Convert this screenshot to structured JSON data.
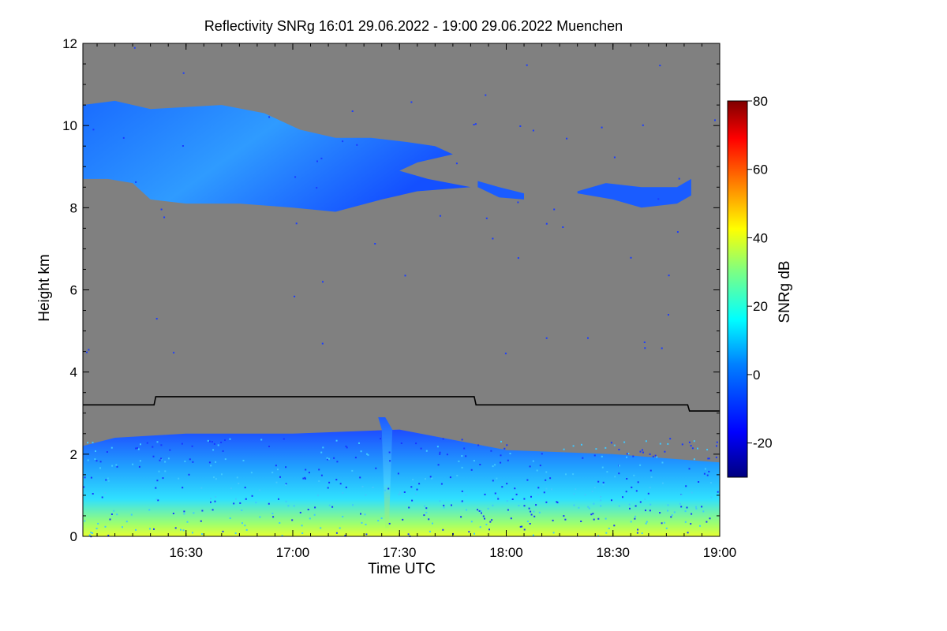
{
  "chart_data": {
    "type": "heatmap",
    "title": "Reflectivity SNRg   16:01 29.06.2022 - 19:00 29.06.2022 Muenchen",
    "xlabel": "Time UTC",
    "ylabel": "Height km",
    "xlim_minutes_after_1600": [
      1,
      180
    ],
    "ylim": [
      0,
      12
    ],
    "x_ticks": [
      {
        "label": "16:30",
        "minutes": 30
      },
      {
        "label": "17:00",
        "minutes": 60
      },
      {
        "label": "17:30",
        "minutes": 90
      },
      {
        "label": "18:00",
        "minutes": 120
      },
      {
        "label": "18:30",
        "minutes": 150
      },
      {
        "label": "19:00",
        "minutes": 180
      }
    ],
    "y_ticks": [
      {
        "label": "0",
        "value": 0
      },
      {
        "label": "2",
        "value": 2
      },
      {
        "label": "4",
        "value": 4
      },
      {
        "label": "6",
        "value": 6
      },
      {
        "label": "8",
        "value": 8
      },
      {
        "label": "10",
        "value": 10
      },
      {
        "label": "12",
        "value": 12
      }
    ],
    "colorbar": {
      "label": "SNRg dB",
      "range": [
        -30,
        80
      ],
      "ticks": [
        {
          "label": "-20",
          "value": -20
        },
        {
          "label": "0",
          "value": 0
        },
        {
          "label": "20",
          "value": 20
        },
        {
          "label": "40",
          "value": 40
        },
        {
          "label": "60",
          "value": 60
        },
        {
          "label": "80",
          "value": 80
        }
      ],
      "colors": [
        "#00007f",
        "#0000ff",
        "#0080ff",
        "#00ffff",
        "#80ff80",
        "#ffff00",
        "#ff8000",
        "#ff0000",
        "#7f0000"
      ]
    },
    "background_color": "#808080",
    "boundary_layer_line": {
      "color": "#000000",
      "points": [
        {
          "minutes": 1,
          "height_km": 3.2
        },
        {
          "minutes": 21,
          "height_km": 3.2
        },
        {
          "minutes": 21.5,
          "height_km": 3.4
        },
        {
          "minutes": 111,
          "height_km": 3.4
        },
        {
          "minutes": 111.5,
          "height_km": 3.2
        },
        {
          "minutes": 171,
          "height_km": 3.2
        },
        {
          "minutes": 171.5,
          "height_km": 3.05
        },
        {
          "minutes": 180,
          "height_km": 3.05
        }
      ]
    },
    "cloud_regions": [
      {
        "name": "cirrus-main",
        "snr_db": -8,
        "top": [
          [
            1,
            10.5
          ],
          [
            10,
            10.6
          ],
          [
            20,
            10.4
          ],
          [
            40,
            10.5
          ],
          [
            52,
            10.3
          ],
          [
            62,
            9.9
          ],
          [
            72,
            9.7
          ],
          [
            82,
            9.7
          ],
          [
            92,
            9.6
          ],
          [
            100,
            9.5
          ],
          [
            105,
            9.3
          ]
        ],
        "base": [
          [
            105,
            9.3
          ],
          [
            95,
            9.1
          ],
          [
            90,
            8.9
          ],
          [
            98,
            8.7
          ],
          [
            110,
            8.5
          ],
          [
            95,
            8.4
          ],
          [
            85,
            8.2
          ],
          [
            72,
            7.9
          ],
          [
            60,
            8.0
          ],
          [
            45,
            8.1
          ],
          [
            30,
            8.1
          ],
          [
            20,
            8.2
          ],
          [
            15,
            8.6
          ],
          [
            8,
            8.7
          ],
          [
            1,
            8.7
          ]
        ]
      },
      {
        "name": "cirrus-patch-a",
        "snr_db": -10,
        "top": [
          [
            112,
            8.65
          ],
          [
            118,
            8.5
          ],
          [
            125,
            8.35
          ]
        ],
        "base": [
          [
            125,
            8.2
          ],
          [
            118,
            8.25
          ],
          [
            112,
            8.5
          ]
        ]
      },
      {
        "name": "cirrus-patch-b",
        "snr_db": -9,
        "top": [
          [
            140,
            8.4
          ],
          [
            148,
            8.6
          ],
          [
            158,
            8.5
          ],
          [
            168,
            8.5
          ],
          [
            172,
            8.7
          ]
        ],
        "base": [
          [
            172,
            8.3
          ],
          [
            168,
            8.1
          ],
          [
            158,
            8.0
          ],
          [
            150,
            8.2
          ],
          [
            140,
            8.35
          ]
        ]
      },
      {
        "name": "boundary-layer",
        "snr_db": 5,
        "top": [
          [
            1,
            2.2
          ],
          [
            10,
            2.4
          ],
          [
            30,
            2.5
          ],
          [
            60,
            2.5
          ],
          [
            90,
            2.6
          ],
          [
            120,
            2.1
          ],
          [
            150,
            2.0
          ],
          [
            180,
            1.8
          ]
        ],
        "base": [
          [
            180,
            0
          ],
          [
            1,
            0
          ]
        ]
      },
      {
        "name": "plume",
        "snr_db": 0,
        "top": [
          [
            84,
            2.9
          ],
          [
            86,
            2.9
          ],
          [
            88,
            2.6
          ],
          [
            87,
            0.2
          ]
        ],
        "base": [
          [
            86,
            0.2
          ],
          [
            85,
            2.6
          ]
        ]
      }
    ]
  }
}
